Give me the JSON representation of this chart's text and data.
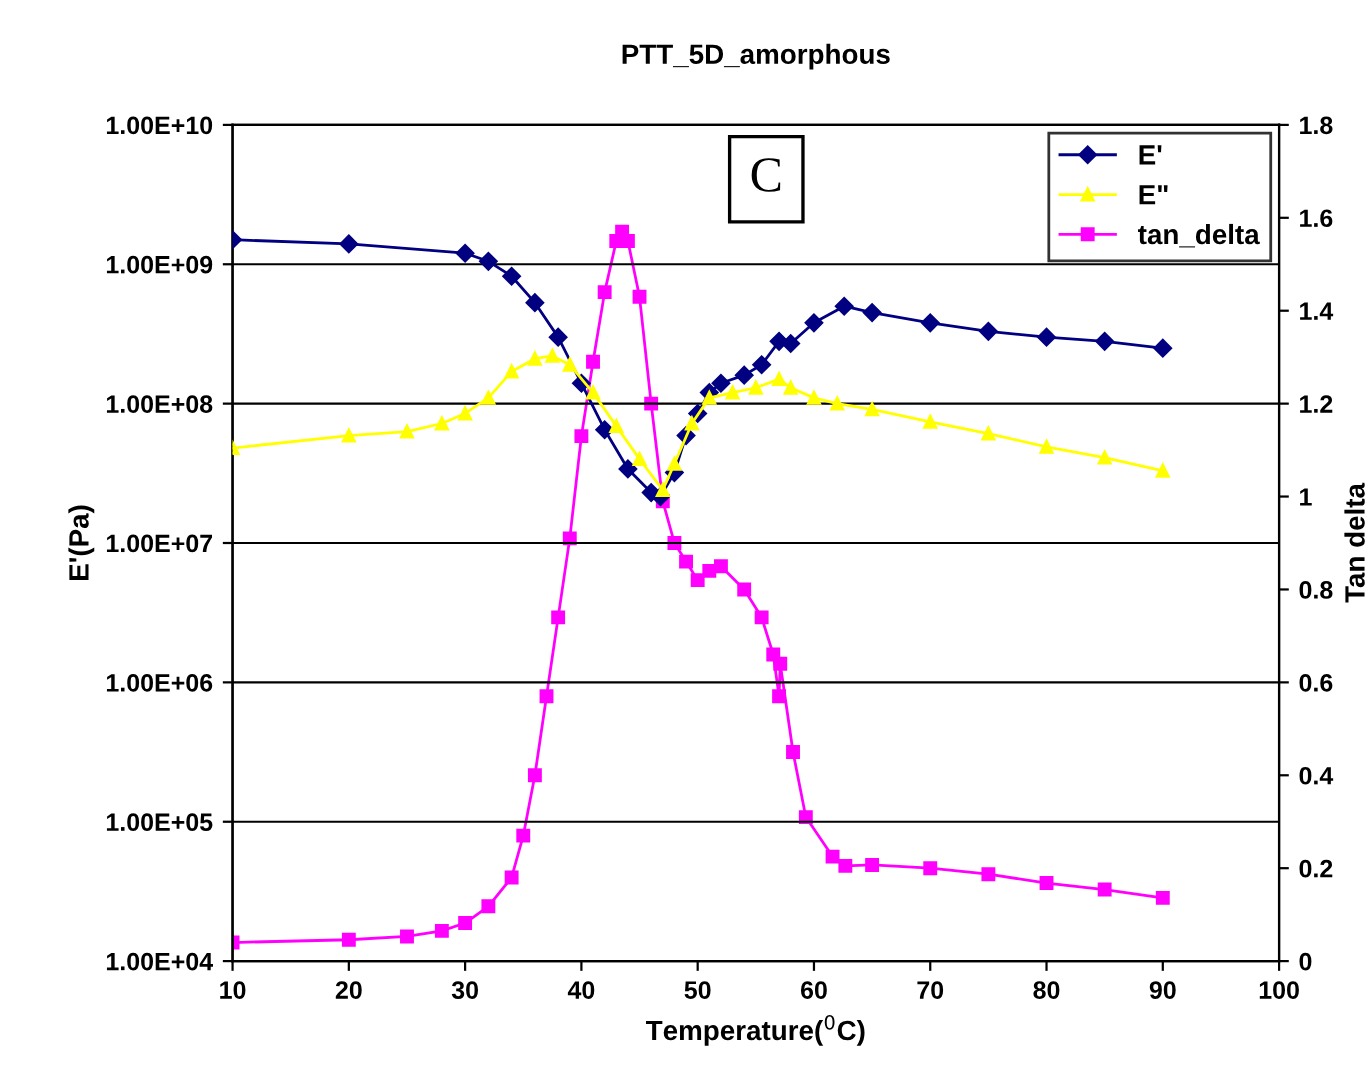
{
  "chart_data": {
    "type": "line",
    "title": "PTT_5D_amorphous",
    "xlabel": "Temperature($^{0}$C)",
    "ylabel": "E'(Pa)",
    "y2label": "Tan delta",
    "annotations": [
      "C"
    ],
    "log": "y",
    "grid": "y",
    "legend": "top right",
    "line_style": "solid",
    "xlim": [
      10,
      100
    ],
    "xticks": [
      10,
      20,
      30,
      40,
      50,
      60,
      70,
      80,
      90,
      100
    ],
    "ylim": [
      10000,
      10000000000
    ],
    "yticks": [
      {
        "value": 10000,
        "label": "1.00E+04"
      },
      {
        "value": 100000,
        "label": "1.00E+05"
      },
      {
        "value": 1000000,
        "label": "1.00E+06"
      },
      {
        "value": 10000000,
        "label": "1.00E+07"
      },
      {
        "value": 100000000,
        "label": "1.00E+08"
      },
      {
        "value": 1000000000,
        "label": "1.00E+09"
      },
      {
        "value": 10000000000,
        "label": "1.00E+10"
      }
    ],
    "y2lim": [
      0,
      1.8
    ],
    "y2ticks": [
      0,
      0.2,
      0.4,
      0.6,
      0.8,
      1,
      1.2,
      1.4,
      1.6,
      1.8
    ],
    "series": [
      {
        "name": "E'",
        "color": "#000080",
        "marker": "diamond",
        "x": [
          10,
          20,
          30,
          32,
          34,
          36,
          38,
          40,
          42,
          44,
          46,
          46.8,
          48,
          49,
          50,
          51,
          52,
          54,
          55.5,
          57,
          58,
          60,
          62.6,
          65,
          70,
          75,
          80,
          85,
          90
        ],
        "values": [
          1500000000.0,
          1400000000.0,
          1200000000.0,
          1050000000.0,
          820000000.0,
          530000000.0,
          300000000.0,
          140000000.0,
          65000000.0,
          34000000.0,
          23000000.0,
          21500000.0,
          32000000.0,
          59000000.0,
          85000000.0,
          120000000.0,
          140000000.0,
          160000000.0,
          190000000.0,
          280000000.0,
          270000000.0,
          380000000.0,
          500000000.0,
          450000000.0,
          380000000.0,
          330000000.0,
          300000000.0,
          280000000.0,
          250000000.0
        ]
      },
      {
        "name": "E\"",
        "color": "#ffff00",
        "marker": "triangle",
        "x": [
          10,
          20,
          25,
          28,
          30,
          32,
          34,
          36,
          37.5,
          39,
          41,
          43,
          45,
          47,
          48,
          49.5,
          51,
          53,
          55,
          57,
          58,
          60,
          62,
          65,
          70,
          75,
          80,
          85,
          90
        ],
        "values": [
          48000000.0,
          59000000.0,
          63000000.0,
          72000000.0,
          85000000.0,
          110000000.0,
          170000000.0,
          210000000.0,
          220000000.0,
          190000000.0,
          120000000.0,
          69000000.0,
          40000000.0,
          24000000.0,
          37000000.0,
          72000000.0,
          110000000.0,
          120000000.0,
          130000000.0,
          150000000.0,
          130000000.0,
          110000000.0,
          100000000.0,
          91000000.0,
          74000000.0,
          61000000.0,
          49000000.0,
          41000000.0,
          33000000.0
        ]
      },
      {
        "name": "tan_delta",
        "color": "#ff00ff",
        "marker": "square",
        "axis": "y2",
        "x": [
          10,
          20,
          25,
          28,
          30,
          32,
          34,
          35,
          36,
          37,
          38,
          39,
          40,
          41,
          42,
          43,
          43.5,
          44,
          45,
          46,
          47,
          48,
          49,
          50,
          51,
          52,
          54,
          55.5,
          56.5,
          57,
          57.1,
          58.2,
          59.3,
          61.6,
          62.7,
          65,
          70,
          75,
          80,
          85,
          90
        ],
        "values": [
          0.04,
          0.046,
          0.053,
          0.065,
          0.082,
          0.118,
          0.18,
          0.27,
          0.4,
          0.57,
          0.74,
          0.91,
          1.13,
          1.29,
          1.44,
          1.55,
          1.57,
          1.55,
          1.43,
          1.2,
          0.99,
          0.9,
          0.86,
          0.82,
          0.84,
          0.85,
          0.8,
          0.74,
          0.66,
          0.57,
          0.64,
          0.45,
          0.31,
          0.225,
          0.205,
          0.207,
          0.2,
          0.187,
          0.168,
          0.154,
          0.136
        ]
      }
    ]
  }
}
